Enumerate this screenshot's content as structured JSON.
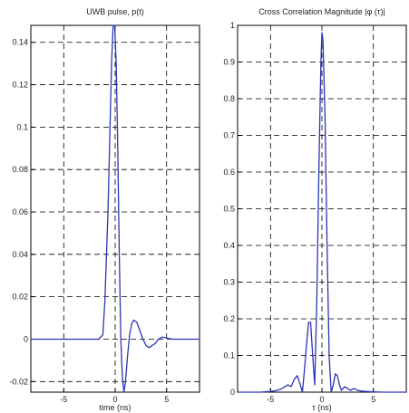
{
  "chart_data": [
    {
      "type": "line",
      "title": "UWB pulse, p(t)",
      "xlabel": "time (ns)",
      "ylabel": "",
      "xlim": [
        -8.2,
        8.2
      ],
      "ylim": [
        -0.025,
        0.148
      ],
      "xticks": [
        -5,
        0,
        5
      ],
      "xtick_labels": [
        "-5",
        "0",
        "5"
      ],
      "yticks": [
        -0.02,
        0,
        0.02,
        0.04,
        0.06,
        0.08,
        0.1,
        0.12,
        0.14
      ],
      "ytick_labels": [
        "-0.02",
        "0",
        "0.02",
        "0.04",
        "0.06",
        "0.08",
        "0.1",
        "0.12",
        "0.14"
      ],
      "grid": true,
      "color": "#2b35b5",
      "series": [
        {
          "x": [
            -8.2,
            -1.6,
            -1.2,
            -1.0,
            -0.7,
            -0.5,
            -0.35,
            -0.2,
            -0.05,
            0.1,
            0.25,
            0.4,
            0.55,
            0.7,
            0.85,
            1.0,
            1.2,
            1.4,
            1.6,
            1.8,
            2.1,
            2.4,
            2.7,
            3.0,
            3.3,
            3.6,
            3.9,
            4.2,
            4.6,
            5.0,
            5.6,
            6.5,
            8.2
          ],
          "y": [
            0,
            0,
            0.002,
            0.018,
            0.06,
            0.1,
            0.13,
            0.148,
            0.148,
            0.13,
            0.09,
            0.04,
            0.0,
            -0.018,
            -0.025,
            -0.02,
            -0.008,
            0.002,
            0.007,
            0.009,
            0.008,
            0.004,
            0.0,
            -0.003,
            -0.004,
            -0.003,
            -0.002,
            0.0,
            0.001,
            0.0005,
            0.0,
            0,
            0
          ]
        }
      ]
    },
    {
      "type": "line",
      "title": "Cross Correlation Magnitude |φ (τ)|",
      "xlabel": "τ (ns)",
      "ylabel": "",
      "xlim": [
        -8.2,
        8.2
      ],
      "ylim": [
        0,
        1
      ],
      "xticks": [
        -5,
        0,
        5
      ],
      "xtick_labels": [
        "-5",
        "0",
        "5"
      ],
      "yticks": [
        0,
        0.1,
        0.2,
        0.3,
        0.4,
        0.5,
        0.6,
        0.7,
        0.8,
        0.9,
        1
      ],
      "ytick_labels": [
        "0",
        "0.1",
        "0.2",
        "0.3",
        "0.4",
        "0.5",
        "0.6",
        "0.7",
        "0.8",
        "0.9",
        "1"
      ],
      "grid": true,
      "color": "#2b35b5",
      "series": [
        {
          "x": [
            -8.2,
            -6.0,
            -5.0,
            -4.5,
            -4.0,
            -3.6,
            -3.3,
            -3.0,
            -2.7,
            -2.4,
            -2.1,
            -1.9,
            -1.7,
            -1.5,
            -1.3,
            -1.1,
            -0.9,
            -0.7,
            -0.5,
            -0.3,
            -0.1,
            0.0,
            0.1,
            0.3,
            0.5,
            0.7,
            0.9,
            1.1,
            1.3,
            1.5,
            1.7,
            1.9,
            2.2,
            2.5,
            2.8,
            3.1,
            3.4,
            3.8,
            4.3,
            5.0,
            6.0,
            8.2
          ],
          "y": [
            0,
            0,
            0.002,
            0.004,
            0.008,
            0.015,
            0.02,
            0.015,
            0.035,
            0.045,
            0.02,
            0.0,
            0.06,
            0.13,
            0.19,
            0.19,
            0.1,
            0.02,
            0.25,
            0.6,
            0.9,
            0.98,
            0.96,
            0.75,
            0.4,
            0.1,
            0.0,
            0.02,
            0.05,
            0.045,
            0.02,
            0.005,
            0.015,
            0.01,
            0.005,
            0.01,
            0.006,
            0.003,
            0.002,
            0.001,
            0,
            0
          ]
        }
      ]
    }
  ]
}
